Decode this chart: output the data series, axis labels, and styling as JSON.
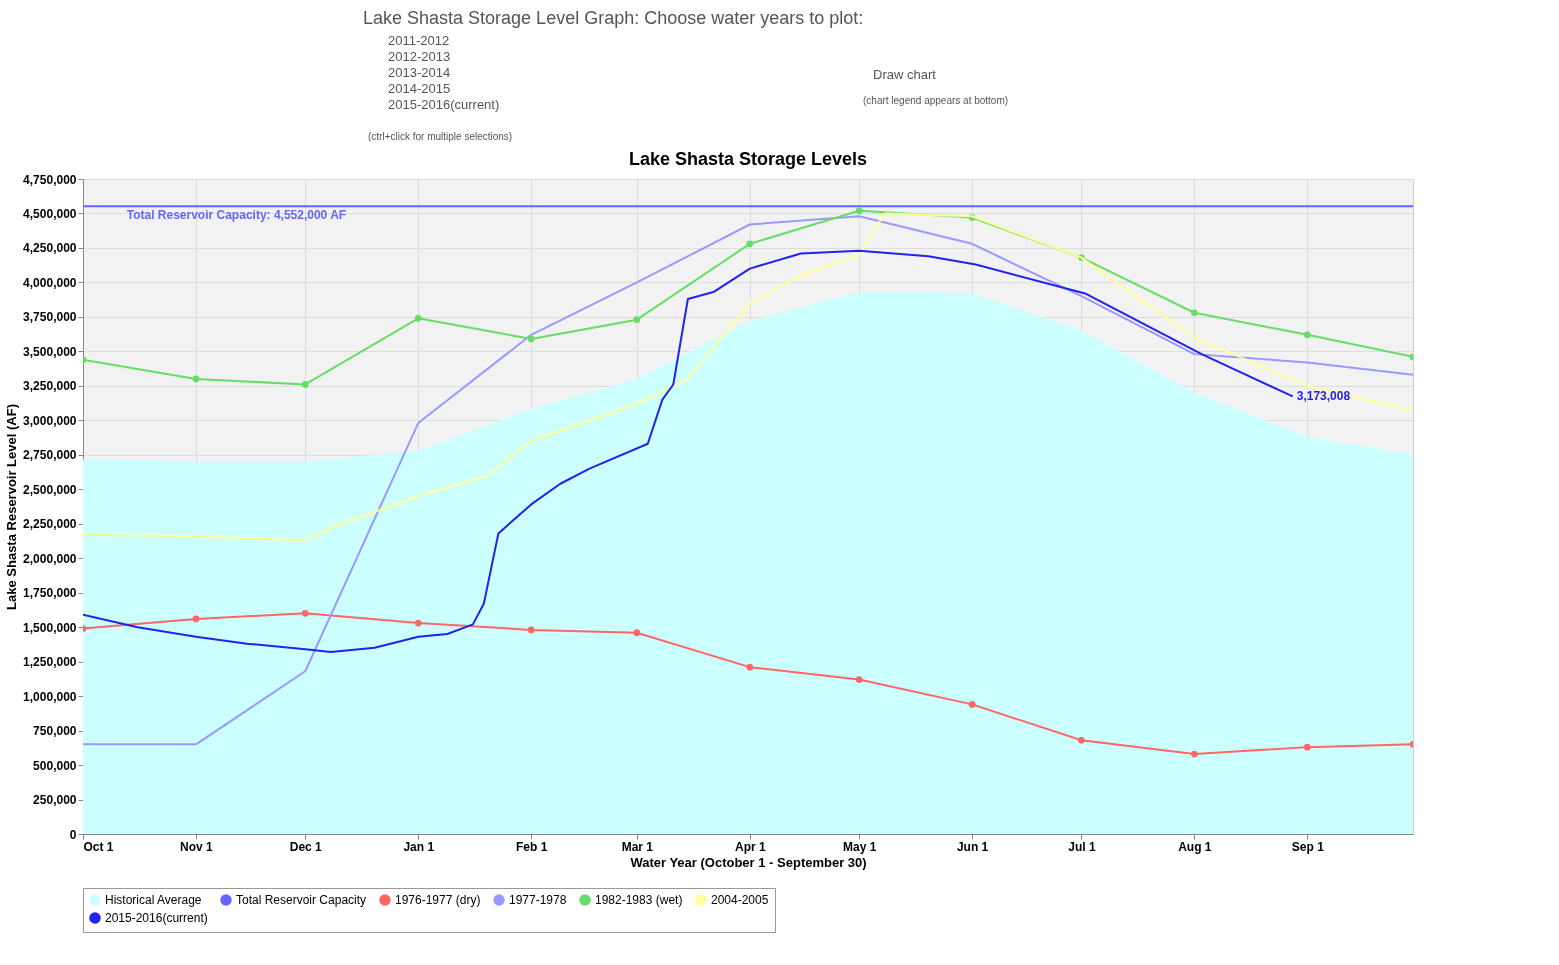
{
  "chart_data": {
    "type": "line",
    "title": "Lake Shasta Storage Levels",
    "annotations": [
      "Lake Shasta Storage Level Graph: Choose water years to plot:",
      "2011-2012",
      "2012-2013",
      "2013-2014",
      "2014-2015",
      "2015-2016(current)",
      "Draw chart",
      "(chart legend appears at bottom)",
      "(ctrl+click for multiple selections)",
      {
        "text": "Total Reservoir Capacity: 4,552,000 AF",
        "x": "2015-10-13",
        "y": 4552000
      }
    ],
    "xlabel": "Water Year (October 1 - September 30)",
    "ylabel": "Lake Shasta Reservoir Level (AF)",
    "xlim": [
      "2015-10-01",
      "2016-09-30"
    ],
    "xticks": [
      {
        "value": "2015-10-01",
        "label": "Oct 1"
      },
      {
        "value": "2015-11-01",
        "label": "Nov 1"
      },
      {
        "value": "2015-12-01",
        "label": "Dec 1"
      },
      {
        "value": "2016-01-01",
        "label": "Jan 1"
      },
      {
        "value": "2016-02-01",
        "label": "Feb 1"
      },
      {
        "value": "2016-03-01",
        "label": "Mar 1"
      },
      {
        "value": "2016-04-01",
        "label": "Apr 1"
      },
      {
        "value": "2016-05-01",
        "label": "May 1"
      },
      {
        "value": "2016-06-01",
        "label": "Jun 1"
      },
      {
        "value": "2016-07-01",
        "label": "Jul 1"
      },
      {
        "value": "2016-08-01",
        "label": "Aug 1"
      },
      {
        "value": "2016-09-01",
        "label": "Sep 1"
      }
    ],
    "ylim": [
      0,
      4750000
    ],
    "yticks": [
      0,
      {
        "value": 250000,
        "label": "250,000"
      },
      {
        "value": 500000,
        "label": "500,000"
      },
      {
        "value": 750000,
        "label": "750,000"
      },
      {
        "value": 1000000,
        "label": "1,000,000"
      },
      {
        "value": 1250000,
        "label": "1,250,000"
      },
      {
        "value": 1500000,
        "label": "1,500,000"
      },
      {
        "value": 1750000,
        "label": "1,750,000"
      },
      {
        "value": 2000000,
        "label": "2,000,000"
      },
      {
        "value": 2250000,
        "label": "2,250,000"
      },
      {
        "value": 2500000,
        "label": "2,500,000"
      },
      {
        "value": 2750000,
        "label": "2,750,000"
      },
      {
        "value": 3000000,
        "label": "3,000,000"
      },
      {
        "value": 3250000,
        "label": "3,250,000"
      },
      {
        "value": 3500000,
        "label": "3,500,000"
      },
      {
        "value": 3750000,
        "label": "3,750,000"
      },
      {
        "value": 4000000,
        "label": "4,000,000"
      },
      {
        "value": 4250000,
        "label": "4,250,000"
      },
      {
        "value": 4500000,
        "label": "4,500,000"
      },
      {
        "value": 4750000,
        "label": "4,750,000"
      }
    ],
    "grid": true,
    "legend": "bottom",
    "series": [
      {
        "name": "Historical Average",
        "type": "area",
        "color": "#ccffff",
        "x": [
          "2015-10-01",
          "2015-11-01",
          "2015-12-01",
          "2016-01-01",
          "2016-02-01",
          "2016-03-01",
          "2016-04-01",
          "2016-05-01",
          "2016-06-01",
          "2016-07-01",
          "2016-08-01",
          "2016-09-01",
          "2016-09-30"
        ],
        "values": [
          2720000,
          2700000,
          2700000,
          2780000,
          3080000,
          3300000,
          3720000,
          3930000,
          3920000,
          3650000,
          3200000,
          2880000,
          2750000
        ]
      },
      {
        "name": "Total Reservoir Capacity",
        "type": "line",
        "color": "#6666ff",
        "x": [
          "2015-10-01",
          "2016-09-30"
        ],
        "values": [
          4552000,
          4552000
        ]
      },
      {
        "name": "1976-1977 (dry)",
        "type": "line",
        "color": "#ff6666",
        "marker": "circle",
        "x": [
          "2015-10-01",
          "2015-11-01",
          "2015-12-01",
          "2016-01-01",
          "2016-02-01",
          "2016-03-01",
          "2016-04-01",
          "2016-05-01",
          "2016-06-01",
          "2016-07-01",
          "2016-08-01",
          "2016-09-01",
          "2016-09-30"
        ],
        "values": [
          1490000,
          1560000,
          1600000,
          1530000,
          1480000,
          1460000,
          1210000,
          1120000,
          940000,
          680000,
          580000,
          630000,
          650000
        ]
      },
      {
        "name": "1977-1978",
        "type": "line",
        "color": "#9999ff",
        "x": [
          "2015-10-01",
          "2015-11-01",
          "2015-12-01",
          "2016-01-01",
          "2016-02-01",
          "2016-03-01",
          "2016-04-01",
          "2016-05-01",
          "2016-06-01",
          "2016-07-01",
          "2016-08-01",
          "2016-09-01",
          "2016-09-30"
        ],
        "values": [
          650000,
          650000,
          1180000,
          2980000,
          3620000,
          4000000,
          4420000,
          4480000,
          4280000,
          3900000,
          3480000,
          3420000,
          3330000
        ]
      },
      {
        "name": "1982-1983 (wet)",
        "type": "line",
        "color": "#66dd66",
        "marker": "circle",
        "x": [
          "2015-10-01",
          "2015-11-01",
          "2015-12-01",
          "2016-01-01",
          "2016-02-01",
          "2016-03-01",
          "2016-04-01",
          "2016-05-01",
          "2016-06-01",
          "2016-07-01",
          "2016-08-01",
          "2016-09-01",
          "2016-09-30"
        ],
        "values": [
          3440000,
          3300000,
          3260000,
          3740000,
          3590000,
          3730000,
          4280000,
          4520000,
          4470000,
          4180000,
          3780000,
          3620000,
          3460000
        ]
      },
      {
        "name": "2004-2005",
        "type": "line",
        "color": "#ffff99",
        "x": [
          "2015-10-01",
          "2015-11-01",
          "2015-12-01",
          "2015-12-08",
          "2016-01-01",
          "2016-01-20",
          "2016-02-01",
          "2016-03-01",
          "2016-03-15",
          "2016-04-01",
          "2016-04-15",
          "2016-05-01",
          "2016-05-08",
          "2016-06-01",
          "2016-07-01",
          "2016-08-01",
          "2016-09-01",
          "2016-09-30"
        ],
        "values": [
          2170000,
          2160000,
          2130000,
          2220000,
          2450000,
          2600000,
          2850000,
          3120000,
          3300000,
          3850000,
          4050000,
          4200000,
          4500000,
          4480000,
          4180000,
          3600000,
          3250000,
          3070000
        ]
      },
      {
        "name": "2015-2016(current)",
        "type": "line",
        "color": "#2222ee",
        "x": [
          "2015-10-01",
          "2015-10-16",
          "2015-11-01",
          "2015-11-15",
          "2015-12-01",
          "2015-12-08",
          "2015-12-20",
          "2016-01-01",
          "2016-01-09",
          "2016-01-16",
          "2016-01-19",
          "2016-01-23",
          "2016-02-01",
          "2016-02-09",
          "2016-02-17",
          "2016-03-04",
          "2016-03-08",
          "2016-03-11",
          "2016-03-15",
          "2016-03-22",
          "2016-04-01",
          "2016-04-15",
          "2016-05-01",
          "2016-05-20",
          "2016-06-02",
          "2016-07-02",
          "2016-08-03",
          "2016-08-28"
        ],
        "values": [
          1590000,
          1500000,
          1430000,
          1380000,
          1340000,
          1320000,
          1350000,
          1430000,
          1450000,
          1520000,
          1670000,
          2180000,
          2390000,
          2540000,
          2650000,
          2830000,
          3150000,
          3260000,
          3880000,
          3930000,
          4100000,
          4210000,
          4230000,
          4190000,
          4130000,
          3920000,
          3480000,
          3173008
        ],
        "value_labels": [
          null,
          null,
          null,
          null,
          null,
          null,
          null,
          null,
          null,
          null,
          null,
          null,
          null,
          null,
          null,
          null,
          null,
          null,
          null,
          null,
          null,
          null,
          null,
          null,
          null,
          null,
          null,
          "3,173,008"
        ]
      }
    ]
  }
}
